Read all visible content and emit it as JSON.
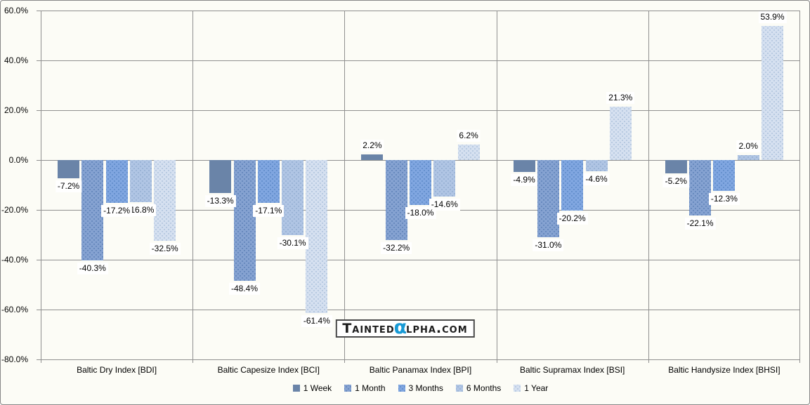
{
  "chart_data": {
    "type": "bar",
    "title": "",
    "xlabel": "",
    "ylabel": "",
    "grid": true,
    "legend_position": "bottom",
    "categories": [
      "Baltic Dry Index [BDI]",
      "Baltic Capesize Index [BCI]",
      "Baltic Panamax Index [BPI]",
      "Baltic Supramax Index [BSI]",
      "Baltic Handysize Index [BHSI]"
    ],
    "series": [
      {
        "name": "1 Week",
        "color": "#6A84A8",
        "pattern": "solid",
        "values": [
          -7.2,
          -13.3,
          2.2,
          -4.9,
          -5.2
        ],
        "labels": [
          "-7.2%",
          "-13.3%",
          "2.2%",
          "-4.9%",
          "-5.2%"
        ]
      },
      {
        "name": "1 Month",
        "color": "#85A2D1",
        "dot_color": "#5E82B8",
        "pattern": "dots",
        "values": [
          -40.3,
          -48.4,
          -32.2,
          -31.0,
          -22.1
        ],
        "labels": [
          "-40.3%",
          "-48.4%",
          "-32.2%",
          "-31.0%",
          "-22.1%"
        ]
      },
      {
        "name": "3 Months",
        "color": "#80A6E0",
        "dot_color": "#5D8AC8",
        "pattern": "dots",
        "values": [
          -17.2,
          -17.1,
          -18.0,
          -20.2,
          -12.3
        ],
        "labels": [
          "-17.2%",
          "-17.1%",
          "-18.0%",
          "-20.2%",
          "-12.3%"
        ]
      },
      {
        "name": "6 Months",
        "color": "#B0C5E4",
        "dot_color": "#94AFD2",
        "pattern": "dots",
        "values": [
          -16.8,
          -30.1,
          -14.6,
          -4.6,
          2.0
        ],
        "labels": [
          "-16.8%",
          "-30.1%",
          "-14.6%",
          "-4.6%",
          "2.0%"
        ]
      },
      {
        "name": "1 Year",
        "color": "#D5E0F0",
        "dot_color": "#AFC3DC",
        "pattern": "dots",
        "values": [
          -32.5,
          -61.4,
          6.2,
          21.3,
          53.9
        ],
        "labels": [
          "-32.5%",
          "-61.4%",
          "6.2%",
          "21.3%",
          "53.9%"
        ]
      }
    ],
    "y_axis": {
      "min": -80,
      "max": 60,
      "step": 20,
      "tick_labels": [
        "60.0%",
        "40.0%",
        "20.0%",
        "0.0%",
        "-20.0%",
        "-40.0%",
        "-60.0%",
        "-80.0%"
      ]
    }
  },
  "watermark": {
    "part1": "Tainted",
    "alpha": "α",
    "part2": "lpha.com",
    "alpha_color": "#189AD5"
  },
  "colors": {
    "gridline": "#909090",
    "chart_border": "#868686",
    "background": "#FCFCF6",
    "label_background": "#FFFFFF"
  }
}
